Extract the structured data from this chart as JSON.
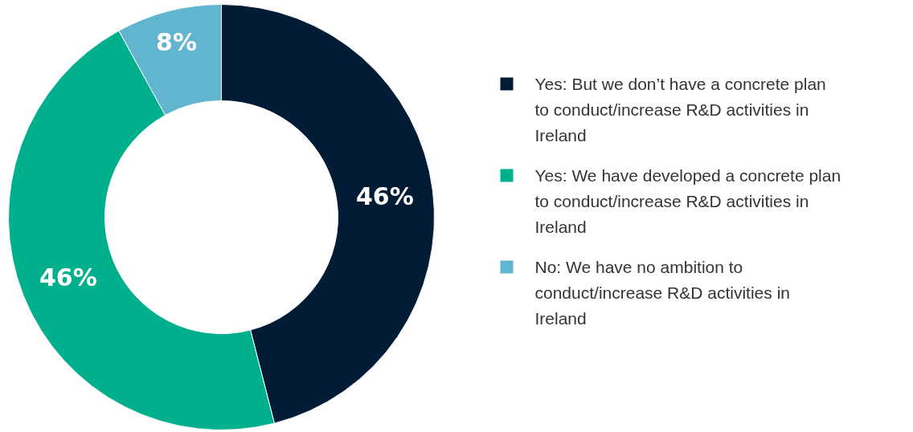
{
  "chart_data": {
    "type": "donut",
    "categories": [
      "Yes: But we don’t have a concrete plan to conduct/increase R&D activities in Ireland",
      "Yes: We have developed a concrete plan to conduct/increase R&D activities in Ireland",
      "No: We have no ambition to conduct/increase R&D activities in Ireland"
    ],
    "values": [
      46,
      46,
      8
    ],
    "colors": [
      "#011c34",
      "#00b08c",
      "#62b5cf"
    ],
    "value_labels": [
      "46%",
      "46%",
      "8%"
    ],
    "legend": "right"
  }
}
